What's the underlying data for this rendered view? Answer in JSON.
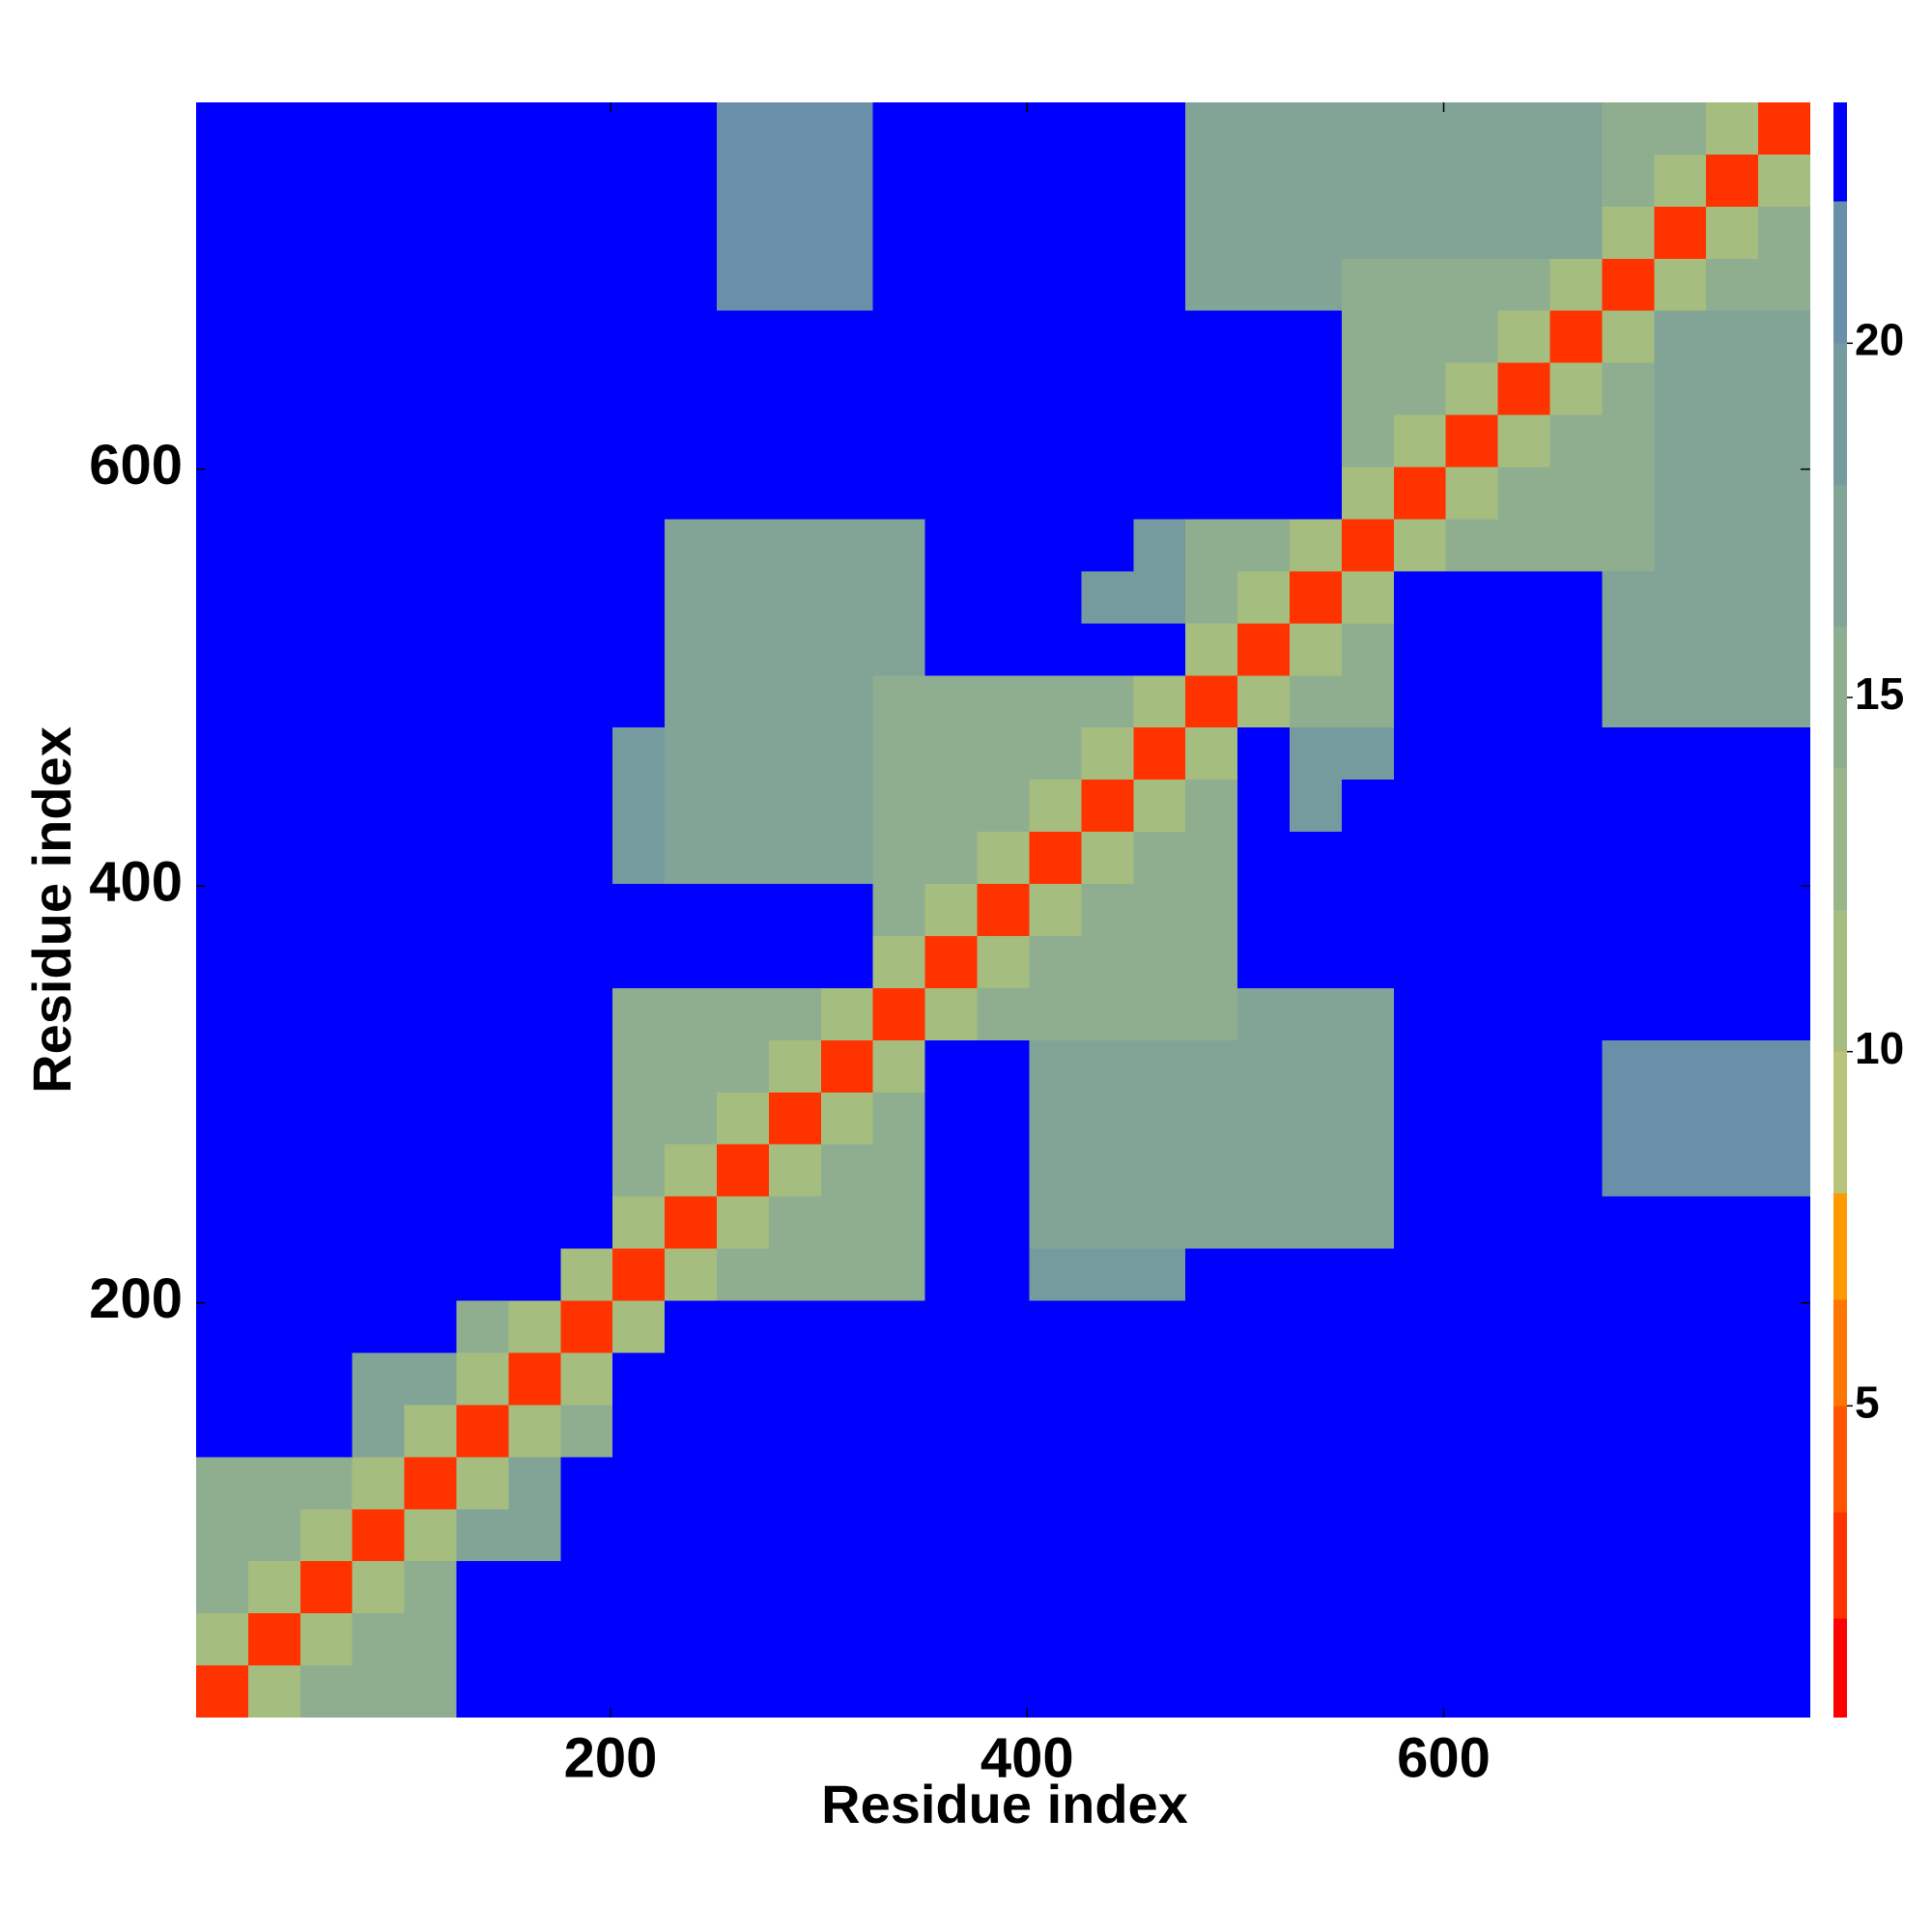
{
  "chart_data": {
    "type": "heatmap",
    "xlabel": "Residue index",
    "ylabel": "Residue index",
    "xlim": [
      1,
      776
    ],
    "ylim": [
      1,
      776
    ],
    "xticks": [
      200,
      400,
      600
    ],
    "yticks": [
      200,
      400,
      600
    ],
    "bins": [
      1,
      26,
      51,
      76,
      101,
      126,
      151,
      176,
      201,
      226,
      251,
      276,
      301,
      326,
      351,
      376,
      401,
      426,
      451,
      476,
      501,
      526,
      551,
      576,
      601,
      626,
      651,
      676,
      701,
      726,
      751,
      776
    ],
    "z": [
      [
        2,
        10,
        15,
        15,
        15,
        23,
        23,
        23,
        23,
        23,
        23,
        23,
        23,
        23,
        23,
        23,
        23,
        23,
        23,
        23,
        23,
        23,
        23,
        23,
        23,
        23,
        23,
        23,
        23,
        23,
        23
      ],
      [
        10,
        2,
        10,
        15,
        15,
        23,
        23,
        23,
        23,
        23,
        23,
        23,
        23,
        23,
        23,
        23,
        23,
        23,
        23,
        23,
        23,
        23,
        23,
        23,
        23,
        23,
        23,
        23,
        23,
        23,
        23
      ],
      [
        15,
        10,
        2,
        10,
        15,
        23,
        23,
        23,
        23,
        23,
        23,
        23,
        23,
        23,
        23,
        23,
        23,
        23,
        23,
        23,
        23,
        23,
        23,
        23,
        23,
        23,
        23,
        23,
        23,
        23,
        23
      ],
      [
        15,
        15,
        10,
        2,
        10,
        17,
        17,
        23,
        23,
        23,
        23,
        23,
        23,
        23,
        23,
        23,
        23,
        23,
        23,
        23,
        23,
        23,
        23,
        23,
        23,
        23,
        23,
        23,
        23,
        23,
        23
      ],
      [
        15,
        15,
        15,
        10,
        2,
        10,
        17,
        23,
        23,
        23,
        23,
        23,
        23,
        23,
        23,
        23,
        23,
        23,
        23,
        23,
        23,
        23,
        23,
        23,
        23,
        23,
        23,
        23,
        23,
        23,
        23
      ],
      [
        23,
        23,
        23,
        17,
        10,
        2,
        10,
        15,
        23,
        23,
        23,
        23,
        23,
        23,
        23,
        23,
        23,
        23,
        23,
        23,
        23,
        23,
        23,
        23,
        23,
        23,
        23,
        23,
        23,
        23,
        23
      ],
      [
        23,
        23,
        23,
        17,
        17,
        10,
        2,
        10,
        23,
        23,
        23,
        23,
        23,
        23,
        23,
        23,
        23,
        23,
        23,
        23,
        23,
        23,
        23,
        23,
        23,
        23,
        23,
        23,
        23,
        23,
        23
      ],
      [
        23,
        23,
        23,
        23,
        23,
        15,
        10,
        2,
        10,
        23,
        23,
        23,
        23,
        23,
        23,
        23,
        23,
        23,
        23,
        23,
        23,
        23,
        23,
        23,
        23,
        23,
        23,
        23,
        23,
        23,
        23
      ],
      [
        23,
        23,
        23,
        23,
        23,
        23,
        23,
        10,
        2,
        10,
        15,
        15,
        15,
        15,
        23,
        23,
        19,
        19,
        19,
        23,
        23,
        23,
        23,
        23,
        23,
        23,
        23,
        23,
        23,
        23,
        23
      ],
      [
        23,
        23,
        23,
        23,
        23,
        23,
        23,
        23,
        10,
        2,
        10,
        15,
        15,
        15,
        23,
        23,
        17,
        17,
        17,
        17,
        17,
        17,
        17,
        23,
        23,
        23,
        23,
        23,
        23,
        23,
        23
      ],
      [
        23,
        23,
        23,
        23,
        23,
        23,
        23,
        23,
        15,
        10,
        2,
        10,
        15,
        15,
        23,
        23,
        17,
        17,
        17,
        17,
        17,
        17,
        17,
        23,
        23,
        23,
        23,
        20,
        20,
        20,
        20
      ],
      [
        23,
        23,
        23,
        23,
        23,
        23,
        23,
        23,
        15,
        15,
        10,
        2,
        10,
        15,
        23,
        23,
        17,
        17,
        17,
        17,
        17,
        17,
        17,
        23,
        23,
        23,
        23,
        20,
        20,
        20,
        20
      ],
      [
        23,
        23,
        23,
        23,
        23,
        23,
        23,
        23,
        15,
        15,
        15,
        10,
        2,
        10,
        23,
        23,
        17,
        17,
        17,
        17,
        17,
        17,
        17,
        23,
        23,
        23,
        23,
        20,
        20,
        20,
        20
      ],
      [
        23,
        23,
        23,
        23,
        23,
        23,
        23,
        23,
        15,
        15,
        15,
        15,
        10,
        2,
        10,
        15,
        15,
        15,
        15,
        15,
        17,
        17,
        17,
        23,
        23,
        23,
        23,
        23,
        23,
        23,
        23
      ],
      [
        23,
        23,
        23,
        23,
        23,
        23,
        23,
        23,
        23,
        23,
        23,
        23,
        23,
        10,
        2,
        10,
        15,
        15,
        15,
        15,
        23,
        23,
        23,
        23,
        23,
        23,
        23,
        23,
        23,
        23,
        23
      ],
      [
        23,
        23,
        23,
        23,
        23,
        23,
        23,
        23,
        23,
        23,
        23,
        23,
        23,
        15,
        10,
        2,
        10,
        15,
        15,
        15,
        23,
        23,
        23,
        23,
        23,
        23,
        23,
        23,
        23,
        23,
        23
      ],
      [
        23,
        23,
        23,
        23,
        23,
        23,
        23,
        23,
        19,
        17,
        17,
        17,
        17,
        15,
        15,
        10,
        2,
        10,
        15,
        15,
        23,
        23,
        23,
        23,
        23,
        23,
        23,
        23,
        23,
        23,
        23
      ],
      [
        23,
        23,
        23,
        23,
        23,
        23,
        23,
        23,
        19,
        17,
        17,
        17,
        17,
        15,
        15,
        15,
        10,
        2,
        10,
        15,
        23,
        18,
        23,
        23,
        23,
        23,
        23,
        23,
        23,
        23,
        23
      ],
      [
        23,
        23,
        23,
        23,
        23,
        23,
        23,
        23,
        19,
        17,
        17,
        17,
        17,
        15,
        15,
        15,
        15,
        10,
        2,
        10,
        23,
        18,
        18,
        23,
        23,
        23,
        23,
        23,
        23,
        23,
        23
      ],
      [
        23,
        23,
        23,
        23,
        23,
        23,
        23,
        23,
        23,
        17,
        17,
        17,
        17,
        15,
        15,
        15,
        15,
        15,
        10,
        2,
        10,
        15,
        15,
        23,
        23,
        23,
        23,
        16,
        16,
        16,
        16
      ],
      [
        23,
        23,
        23,
        23,
        23,
        23,
        23,
        23,
        23,
        17,
        17,
        17,
        17,
        17,
        23,
        23,
        23,
        23,
        23,
        10,
        2,
        10,
        15,
        23,
        23,
        23,
        23,
        16,
        16,
        16,
        16
      ],
      [
        23,
        23,
        23,
        23,
        23,
        23,
        23,
        23,
        23,
        17,
        17,
        17,
        17,
        17,
        23,
        23,
        23,
        18,
        18,
        15,
        10,
        2,
        10,
        23,
        23,
        23,
        23,
        16,
        16,
        16,
        16
      ],
      [
        23,
        23,
        23,
        23,
        23,
        23,
        23,
        23,
        23,
        17,
        17,
        17,
        17,
        17,
        23,
        23,
        23,
        23,
        18,
        15,
        15,
        10,
        2,
        10,
        15,
        15,
        15,
        15,
        16,
        16,
        16
      ],
      [
        23,
        23,
        23,
        23,
        23,
        23,
        23,
        23,
        23,
        23,
        23,
        23,
        23,
        23,
        23,
        23,
        23,
        23,
        23,
        23,
        23,
        23,
        10,
        2,
        10,
        15,
        15,
        15,
        16,
        16,
        16
      ],
      [
        23,
        23,
        23,
        23,
        23,
        23,
        23,
        23,
        23,
        23,
        23,
        23,
        23,
        23,
        23,
        23,
        23,
        23,
        23,
        23,
        23,
        23,
        15,
        10,
        2,
        10,
        15,
        15,
        16,
        16,
        16
      ],
      [
        23,
        23,
        23,
        23,
        23,
        23,
        23,
        23,
        23,
        23,
        23,
        23,
        23,
        23,
        23,
        23,
        23,
        23,
        23,
        23,
        23,
        23,
        15,
        15,
        10,
        2,
        10,
        15,
        16,
        16,
        16
      ],
      [
        23,
        23,
        23,
        23,
        23,
        23,
        23,
        23,
        23,
        23,
        23,
        23,
        23,
        23,
        23,
        23,
        23,
        23,
        23,
        23,
        23,
        23,
        15,
        15,
        15,
        10,
        2,
        10,
        16,
        16,
        16
      ],
      [
        23,
        23,
        23,
        23,
        23,
        23,
        23,
        23,
        23,
        23,
        20,
        20,
        20,
        23,
        23,
        23,
        23,
        23,
        23,
        16,
        16,
        16,
        15,
        15,
        15,
        15,
        10,
        2,
        10,
        15,
        15
      ],
      [
        23,
        23,
        23,
        23,
        23,
        23,
        23,
        23,
        23,
        23,
        20,
        20,
        20,
        23,
        23,
        23,
        23,
        23,
        23,
        16,
        16,
        16,
        16,
        16,
        16,
        16,
        16,
        10,
        2,
        10,
        15
      ],
      [
        23,
        23,
        23,
        23,
        23,
        23,
        23,
        23,
        23,
        23,
        20,
        20,
        20,
        23,
        23,
        23,
        23,
        23,
        23,
        16,
        16,
        16,
        16,
        16,
        16,
        16,
        16,
        15,
        10,
        2,
        10
      ],
      [
        23,
        23,
        23,
        23,
        23,
        23,
        23,
        23,
        23,
        23,
        20,
        20,
        20,
        23,
        23,
        23,
        23,
        23,
        23,
        16,
        16,
        16,
        16,
        16,
        16,
        16,
        16,
        15,
        15,
        10,
        2
      ]
    ],
    "colorbar": {
      "levels": [
        0.6,
        2,
        3.5,
        5,
        6.5,
        8,
        10,
        12,
        14,
        16,
        18,
        20,
        22,
        23.4
      ],
      "colors": [
        "#ff0000",
        "#ff3300",
        "#ff5500",
        "#ff7700",
        "#ff9900",
        "#b7c47a",
        "#a6bd80",
        "#98b68a",
        "#8fae90",
        "#82a497",
        "#769b9f",
        "#6a8fa8",
        "#0000ff"
      ],
      "ticks": [
        5,
        10,
        15,
        20
      ]
    }
  }
}
